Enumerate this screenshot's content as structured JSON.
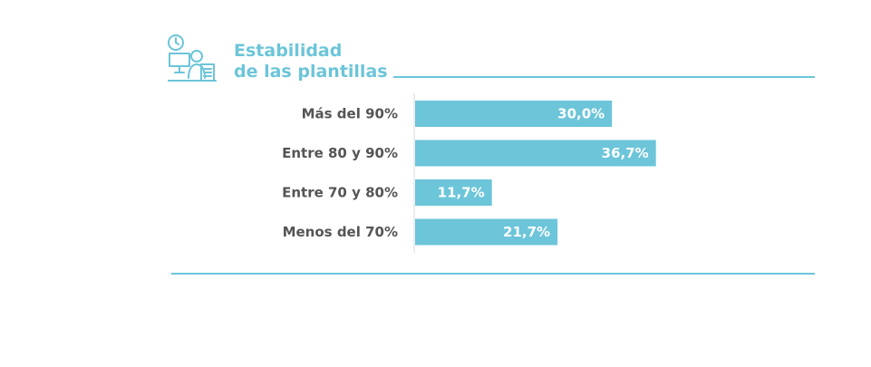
{
  "header": {
    "icon": "office-worker-clock-icon",
    "title_line1": "Estabilidad",
    "title_line2": "de las plantillas"
  },
  "colors": {
    "accent": "#6cc5d9",
    "bar": "#6cc5d9",
    "category_text": "#555555",
    "value_text": "#ffffff",
    "axis": "#d9d9d9"
  },
  "chart_data": {
    "type": "bar",
    "orientation": "horizontal",
    "title": "Estabilidad de las plantillas",
    "categories": [
      "Más del 90%",
      "Entre 80 y 90%",
      "Entre 70 y 80%",
      "Menos del 70%"
    ],
    "values": [
      30.0,
      36.7,
      11.7,
      21.7
    ],
    "value_labels": [
      "30,0%",
      "36,7%",
      "11,7%",
      "21,7%"
    ],
    "xlim": [
      0,
      50
    ],
    "grid": false,
    "legend": "none"
  }
}
